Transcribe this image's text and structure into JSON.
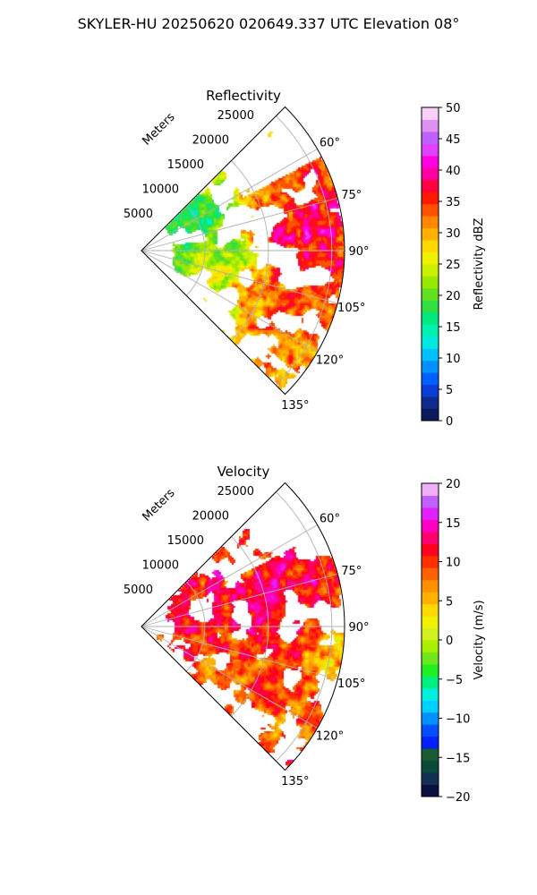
{
  "figure": {
    "suptitle": "SKYLER-HU  20250620  020649.337 UTC Elevation 08°"
  },
  "chart_data": [
    {
      "type": "heatmap",
      "projection": "polar-sector",
      "title": "Reflectivity",
      "radial_label": "Meters",
      "r_ticks": [
        5000,
        10000,
        15000,
        20000,
        25000
      ],
      "r_tick_labels": [
        "5000",
        "10000",
        "15000",
        "20000",
        "25000"
      ],
      "theta_ticks_deg": [
        60,
        75,
        90,
        105,
        120,
        135
      ],
      "theta_tick_labels": [
        "60°",
        "75°",
        "90°",
        "105°",
        "120°",
        "135°"
      ],
      "theta_range_deg": [
        45,
        135
      ],
      "r_range": [
        0,
        16000
      ],
      "grid": true,
      "colorbar": {
        "label": "Reflectivity dBZ",
        "range": [
          0,
          50
        ],
        "ticks": [
          0,
          5,
          10,
          15,
          20,
          25,
          30,
          35,
          40,
          45,
          50
        ],
        "tick_labels": [
          "0",
          "5",
          "10",
          "15",
          "20",
          "25",
          "30",
          "35",
          "40",
          "45",
          "50"
        ],
        "colors": [
          "#0b1a5a",
          "#0d2a8c",
          "#0a3dd8",
          "#0060ff",
          "#0090ff",
          "#00c0ff",
          "#00e8e0",
          "#00f0b0",
          "#00e880",
          "#30e040",
          "#60e020",
          "#98e800",
          "#c8f000",
          "#f0f000",
          "#ffd800",
          "#ffb000",
          "#ff8800",
          "#ff5000",
          "#ff1800",
          "#ff0040",
          "#ff00a0",
          "#ff00e0",
          "#e040ff",
          "#c060ff",
          "#e090f0",
          "#f8d0f8"
        ]
      },
      "field": {
        "units": "dBZ",
        "cells": [
          {
            "az": 85,
            "r": 11500,
            "value": 42
          },
          {
            "az": 83,
            "r": 13000,
            "value": 40
          },
          {
            "az": 95,
            "r": 14000,
            "value": 36
          },
          {
            "az": 105,
            "r": 11000,
            "value": 34
          },
          {
            "az": 112,
            "r": 9500,
            "value": 33
          },
          {
            "az": 98,
            "r": 8000,
            "value": 25
          },
          {
            "az": 80,
            "r": 6000,
            "value": 18
          },
          {
            "az": 72,
            "r": 4500,
            "value": 12
          },
          {
            "az": 120,
            "r": 7000,
            "value": 22
          }
        ]
      }
    },
    {
      "type": "heatmap",
      "projection": "polar-sector",
      "title": "Velocity",
      "radial_label": "Meters",
      "r_ticks": [
        5000,
        10000,
        15000,
        20000,
        25000
      ],
      "r_tick_labels": [
        "5000",
        "10000",
        "15000",
        "20000",
        "25000"
      ],
      "theta_ticks_deg": [
        60,
        75,
        90,
        105,
        120,
        135
      ],
      "theta_tick_labels": [
        "60°",
        "75°",
        "90°",
        "105°",
        "120°",
        "135°"
      ],
      "theta_range_deg": [
        45,
        135
      ],
      "r_range": [
        0,
        16000
      ],
      "grid": true,
      "colorbar": {
        "label": "Velocity (m/s)",
        "range": [
          -20,
          20
        ],
        "ticks": [
          -20,
          -15,
          -10,
          -5,
          0,
          5,
          10,
          15,
          20
        ],
        "tick_labels": [
          "−20",
          "−15",
          "−10",
          "−5",
          "0",
          "5",
          "10",
          "15",
          "20"
        ],
        "colors": [
          "#0a1040",
          "#143050",
          "#0a4a3a",
          "#1a5a30",
          "#0020ff",
          "#0050ff",
          "#0090ff",
          "#00d0ff",
          "#00f0e0",
          "#00f080",
          "#20f020",
          "#70e820",
          "#a8f000",
          "#d0f020",
          "#f0f000",
          "#ffd800",
          "#ffb000",
          "#ff9000",
          "#ff6000",
          "#ff3000",
          "#ff0020",
          "#ff0070",
          "#ff00c0",
          "#e020ff",
          "#c060ff",
          "#f0b0f8"
        ]
      },
      "field": {
        "units": "m/s",
        "cells": [
          {
            "az": 80,
            "r": 11000,
            "value": 14
          },
          {
            "az": 88,
            "r": 9000,
            "value": 13
          },
          {
            "az": 95,
            "r": 10000,
            "value": 10
          },
          {
            "az": 105,
            "r": 12000,
            "value": 9
          },
          {
            "az": 112,
            "r": 10000,
            "value": 10
          },
          {
            "az": 120,
            "r": 8000,
            "value": 6
          },
          {
            "az": 100,
            "r": 15000,
            "value": 2
          },
          {
            "az": 70,
            "r": 6000,
            "value": 12
          }
        ]
      }
    }
  ]
}
